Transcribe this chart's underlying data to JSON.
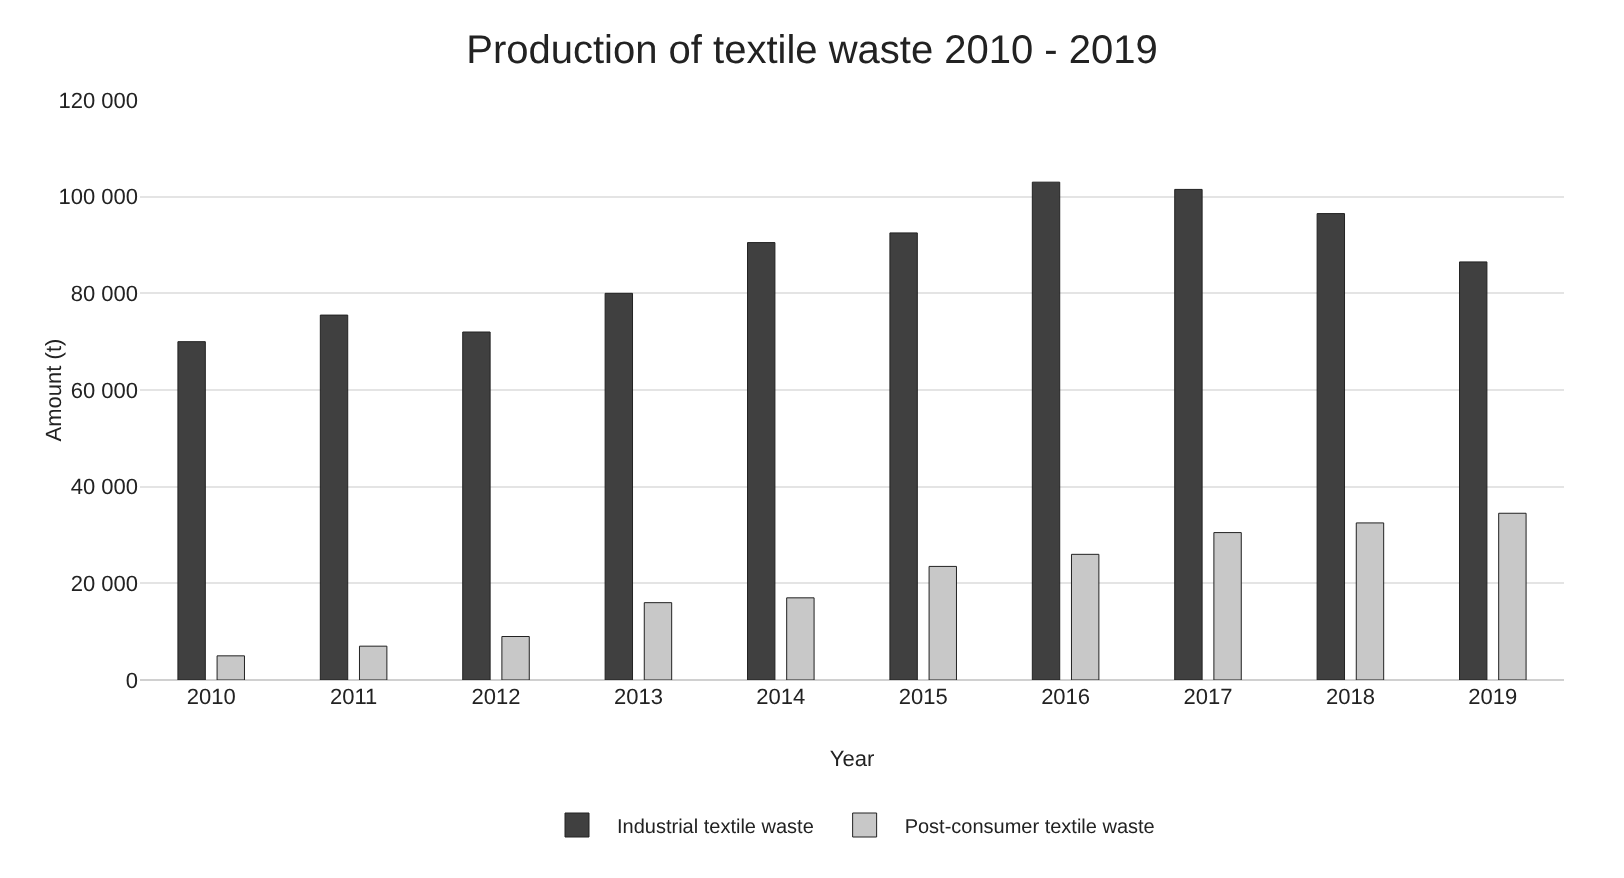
{
  "chart_data": {
    "type": "bar",
    "title": "Production of textile waste 2010 - 2019",
    "xlabel": "Year",
    "ylabel": "Amount (t)",
    "categories": [
      "2010",
      "2011",
      "2012",
      "2013",
      "2014",
      "2015",
      "2016",
      "2017",
      "2018",
      "2019"
    ],
    "series": [
      {
        "name": "Industrial textile waste",
        "color": "#404040",
        "values": [
          70000,
          75500,
          72000,
          80000,
          90500,
          92500,
          103000,
          101500,
          96500,
          86500
        ]
      },
      {
        "name": "Post-consumer textile waste",
        "color": "#c8c8c8",
        "values": [
          5000,
          7000,
          9000,
          16000,
          17000,
          23500,
          26000,
          30500,
          32500,
          34500
        ]
      }
    ],
    "ylim": [
      0,
      120000
    ],
    "yticks": [
      {
        "value": 0,
        "label": "0"
      },
      {
        "value": 20000,
        "label": "20 000"
      },
      {
        "value": 40000,
        "label": "40 000"
      },
      {
        "value": 60000,
        "label": "60 000"
      },
      {
        "value": 80000,
        "label": "80 000"
      },
      {
        "value": 100000,
        "label": "100 000"
      },
      {
        "value": 120000,
        "label": "120 000"
      }
    ],
    "grid": "y",
    "legend": "bottom"
  }
}
